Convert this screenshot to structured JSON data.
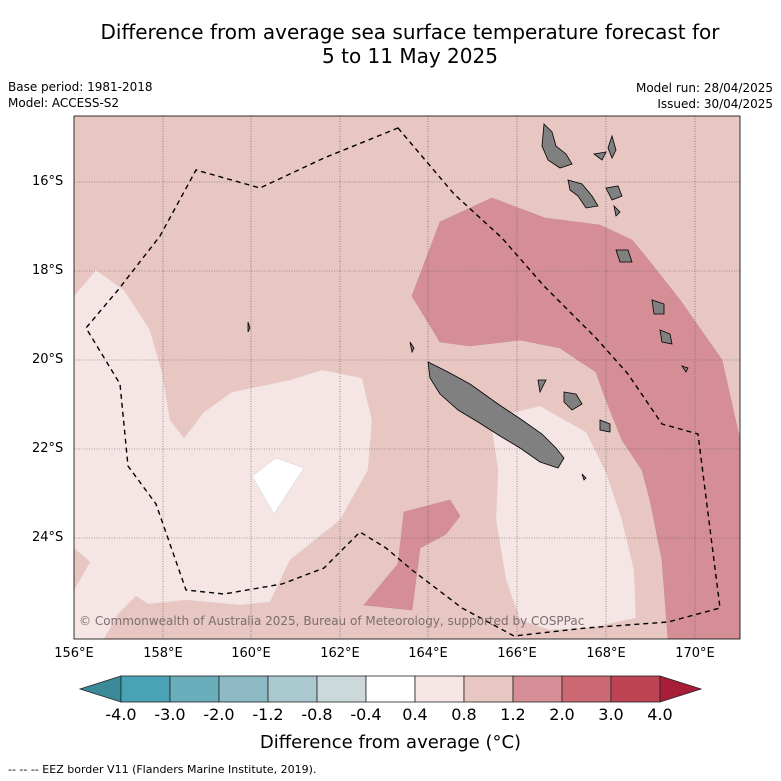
{
  "title": {
    "line1": "Difference from average sea surface temperature forecast for",
    "line2": "5 to 11 May 2025"
  },
  "meta_left": {
    "base_period": "Base period: 1981-2018",
    "model": "Model: ACCESS-S2"
  },
  "meta_right": {
    "model_run": "Model run: 28/04/2025",
    "issued": "Issued: 30/04/2025"
  },
  "map": {
    "lon_range": [
      156,
      171
    ],
    "lat_range": [
      -25.9,
      -14.7
    ],
    "lon_ticks": [
      "156°E",
      "158°E",
      "160°E",
      "162°E",
      "164°E",
      "166°E",
      "168°E",
      "170°E"
    ],
    "lat_ticks": [
      "16°S",
      "18°S",
      "20°S",
      "22°S",
      "24°S"
    ],
    "grid": true,
    "credit": "© Commonwealth of Australia 2025, Bureau of Meteorology, supported by COSPPac"
  },
  "colorbar": {
    "title": "Difference from average (°C)",
    "tick_labels": [
      "-4.0",
      "-3.0",
      "-2.0",
      "-1.2",
      "-0.8",
      "-0.4",
      "0.4",
      "0.8",
      "1.2",
      "2.0",
      "3.0",
      "4.0"
    ],
    "colors": [
      "#3b8a9a",
      "#4aa3b4",
      "#6aaebb",
      "#8cb9c4",
      "#aac9ce",
      "#ccd9db",
      "#ffffff",
      "#f5e6e5",
      "#e8c6c2",
      "#d68e96",
      "#cc6872",
      "#be4454",
      "#a81e38"
    ]
  },
  "footnote": "--  --  -- EEZ border V11 (Flanders Marine Institute, 2019)."
}
